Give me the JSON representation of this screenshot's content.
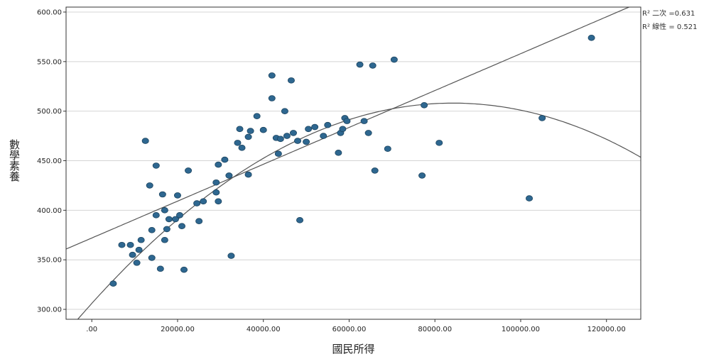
{
  "chart_data": {
    "type": "scatter",
    "xlabel": "國民所得",
    "ylabel": "數學素養",
    "xlim": [
      -6000,
      128000
    ],
    "ylim": [
      290,
      605
    ],
    "x_ticks": [
      0,
      20000,
      40000,
      60000,
      80000,
      100000,
      120000
    ],
    "x_tick_labels": [
      ".00",
      "20000.00",
      "40000.00",
      "60000.00",
      "80000.00",
      "100000.00",
      "120000.00"
    ],
    "y_ticks": [
      300,
      350,
      400,
      450,
      500,
      550,
      600
    ],
    "y_tick_labels": [
      "300.00",
      "350.00",
      "400.00",
      "450.00",
      "500.00",
      "550.00",
      "600.00"
    ],
    "grid": "horizontal",
    "legend": {
      "placement": "top-right",
      "entries": [
        {
          "label": "R² 二次 =0.631"
        },
        {
          "label": "R² 線性 = 0.521"
        }
      ]
    },
    "fit_lines": [
      {
        "name": "線性",
        "kind": "linear",
        "intercept": 372,
        "slope": 0.00186
      },
      {
        "name": "二次",
        "kind": "quadratic",
        "a": 306,
        "b": 0.0048,
        "c": -2.85e-08
      }
    ],
    "colors": {
      "points": "#2e6790",
      "point_edge": "#1d4560",
      "fit_line": "#555555",
      "grid": "#d4d4d4",
      "frame": "#333333"
    },
    "points": [
      {
        "x": 5000,
        "y": 326
      },
      {
        "x": 7000,
        "y": 365
      },
      {
        "x": 9000,
        "y": 365
      },
      {
        "x": 9500,
        "y": 355
      },
      {
        "x": 10500,
        "y": 347
      },
      {
        "x": 11000,
        "y": 360
      },
      {
        "x": 11500,
        "y": 370
      },
      {
        "x": 12500,
        "y": 470
      },
      {
        "x": 13500,
        "y": 425
      },
      {
        "x": 14000,
        "y": 380
      },
      {
        "x": 14000,
        "y": 352
      },
      {
        "x": 15000,
        "y": 395
      },
      {
        "x": 15000,
        "y": 445
      },
      {
        "x": 16000,
        "y": 341
      },
      {
        "x": 16500,
        "y": 416
      },
      {
        "x": 17000,
        "y": 370
      },
      {
        "x": 17000,
        "y": 400
      },
      {
        "x": 17500,
        "y": 381
      },
      {
        "x": 18000,
        "y": 391
      },
      {
        "x": 19500,
        "y": 391
      },
      {
        "x": 20000,
        "y": 415
      },
      {
        "x": 20500,
        "y": 395
      },
      {
        "x": 21000,
        "y": 384
      },
      {
        "x": 21500,
        "y": 340
      },
      {
        "x": 22500,
        "y": 440
      },
      {
        "x": 24500,
        "y": 407
      },
      {
        "x": 25000,
        "y": 389
      },
      {
        "x": 26000,
        "y": 409
      },
      {
        "x": 29000,
        "y": 418
      },
      {
        "x": 29000,
        "y": 428
      },
      {
        "x": 29500,
        "y": 446
      },
      {
        "x": 29500,
        "y": 409
      },
      {
        "x": 31000,
        "y": 451
      },
      {
        "x": 32000,
        "y": 435
      },
      {
        "x": 32500,
        "y": 354
      },
      {
        "x": 34000,
        "y": 468
      },
      {
        "x": 34500,
        "y": 482
      },
      {
        "x": 35000,
        "y": 463
      },
      {
        "x": 36500,
        "y": 474
      },
      {
        "x": 36500,
        "y": 436
      },
      {
        "x": 37000,
        "y": 480
      },
      {
        "x": 38500,
        "y": 495
      },
      {
        "x": 40000,
        "y": 481
      },
      {
        "x": 42000,
        "y": 536
      },
      {
        "x": 42000,
        "y": 513
      },
      {
        "x": 43000,
        "y": 473
      },
      {
        "x": 43500,
        "y": 457
      },
      {
        "x": 44000,
        "y": 472
      },
      {
        "x": 45000,
        "y": 500
      },
      {
        "x": 45500,
        "y": 475
      },
      {
        "x": 46500,
        "y": 531
      },
      {
        "x": 47000,
        "y": 478
      },
      {
        "x": 48000,
        "y": 470
      },
      {
        "x": 48500,
        "y": 390
      },
      {
        "x": 50000,
        "y": 469
      },
      {
        "x": 50500,
        "y": 482
      },
      {
        "x": 52000,
        "y": 484
      },
      {
        "x": 54000,
        "y": 475
      },
      {
        "x": 55000,
        "y": 486
      },
      {
        "x": 57500,
        "y": 458
      },
      {
        "x": 58000,
        "y": 478
      },
      {
        "x": 58500,
        "y": 482
      },
      {
        "x": 59000,
        "y": 493
      },
      {
        "x": 59500,
        "y": 490
      },
      {
        "x": 62500,
        "y": 547
      },
      {
        "x": 63500,
        "y": 490
      },
      {
        "x": 64500,
        "y": 478
      },
      {
        "x": 65500,
        "y": 546
      },
      {
        "x": 66000,
        "y": 440
      },
      {
        "x": 69000,
        "y": 462
      },
      {
        "x": 70500,
        "y": 552
      },
      {
        "x": 77000,
        "y": 435
      },
      {
        "x": 77500,
        "y": 506
      },
      {
        "x": 81000,
        "y": 468
      },
      {
        "x": 102000,
        "y": 412
      },
      {
        "x": 105000,
        "y": 493
      },
      {
        "x": 116500,
        "y": 574
      }
    ]
  }
}
